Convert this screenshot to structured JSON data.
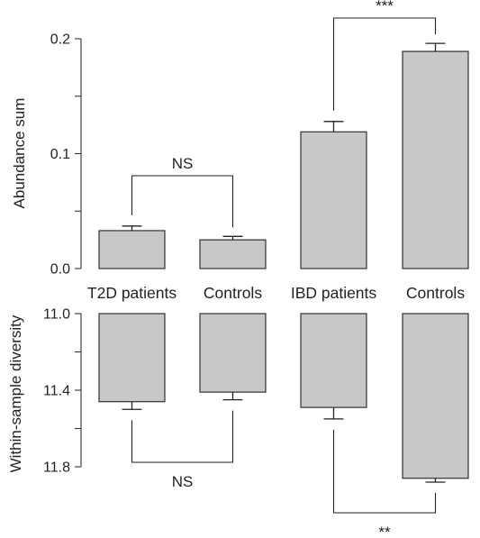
{
  "colors": {
    "bar_fill": "#c8c8c8",
    "stroke": "#222222",
    "background": "#ffffff"
  },
  "chart_data": [
    {
      "type": "bar",
      "ylabel": "Abundance sum",
      "ylim": [
        0,
        0.2
      ],
      "yticks": [
        0.0,
        0.1,
        0.2
      ],
      "ytick_labels": [
        "0.0",
        "0.1",
        "0.2"
      ],
      "categories": [
        "T2D patients",
        "Controls",
        "IBD patients",
        "Controls"
      ],
      "values": [
        0.033,
        0.025,
        0.119,
        0.189
      ],
      "errors": [
        0.004,
        0.003,
        0.009,
        0.007
      ],
      "comparisons": [
        {
          "pair": [
            0,
            1
          ],
          "label": "NS"
        },
        {
          "pair": [
            2,
            3
          ],
          "label": "***"
        }
      ],
      "grid": false
    },
    {
      "type": "bar",
      "ylabel": "Within-sample diversity",
      "ylim": [
        11.0,
        11.8
      ],
      "inverted": true,
      "yticks": [
        11.0,
        11.4,
        11.8
      ],
      "ytick_labels": [
        "11.0",
        "11.4",
        "11.8"
      ],
      "categories": [
        "T2D patients",
        "Controls",
        "IBD patients",
        "Controls"
      ],
      "values": [
        11.46,
        11.41,
        11.49,
        11.86
      ],
      "errors": [
        0.04,
        0.04,
        0.06,
        0.02
      ],
      "comparisons": [
        {
          "pair": [
            0,
            1
          ],
          "label": "NS"
        },
        {
          "pair": [
            2,
            3
          ],
          "label": "**"
        }
      ],
      "grid": false
    }
  ]
}
